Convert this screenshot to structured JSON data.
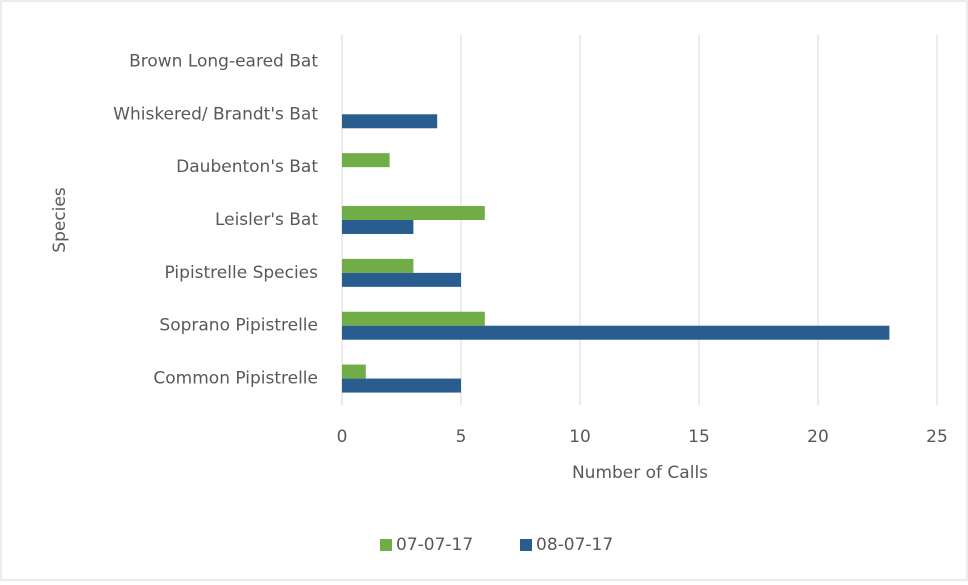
{
  "chart_data": {
    "type": "hbar",
    "categories": [
      "Common Pipistrelle",
      "Soprano Pipistrelle",
      "Pipistrelle Species",
      "Leisler's Bat",
      "Daubenton's Bat",
      "Whiskered/ Brandt's Bat",
      "Brown Long-eared Bat"
    ],
    "series": [
      {
        "name": "07-07-17",
        "color": "#70ad47",
        "values": [
          1,
          6,
          3,
          6,
          2,
          0,
          0
        ]
      },
      {
        "name": "08-07-17",
        "color": "#2a5d8f",
        "values": [
          5,
          23,
          5,
          3,
          0,
          4,
          0
        ]
      }
    ],
    "x_label": "Number of Calls",
    "y_label": "Species",
    "xlim": [
      0,
      25
    ],
    "xticks": [
      0,
      5,
      10,
      15,
      20,
      25
    ],
    "grid": true,
    "legend": "bottom"
  }
}
